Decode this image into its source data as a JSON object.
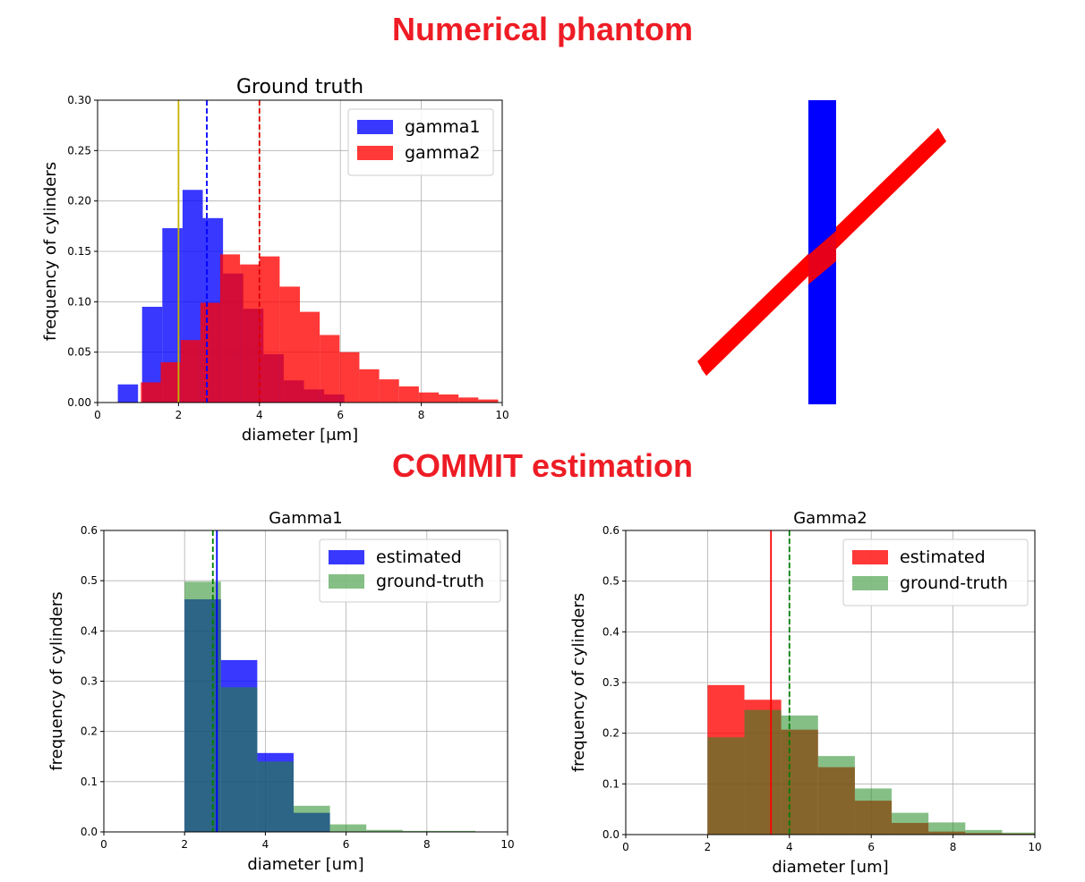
{
  "headings": {
    "top": "Numerical phantom",
    "middle": "COMMIT estimation"
  },
  "phantom": {
    "bundle1_color": "#0000ff",
    "bundle2_color": "#ff0000"
  },
  "chart_data": [
    {
      "id": "ground-truth",
      "type": "bar",
      "title": "Ground truth",
      "xlabel": "diameter [μm]",
      "ylabel": "frequency of cylinders",
      "xlim": [
        0,
        10
      ],
      "ylim": [
        0,
        0.3
      ],
      "xticks": [
        0,
        2,
        4,
        6,
        8,
        10
      ],
      "xtick_labels": [
        "0",
        "2",
        "4",
        "6",
        "8",
        "10"
      ],
      "yticks": [
        0,
        0.05,
        0.1,
        0.15,
        0.2,
        0.25,
        0.3
      ],
      "ytick_labels": [
        "0.00",
        "0.05",
        "0.10",
        "0.15",
        "0.20",
        "0.25",
        "0.30"
      ],
      "grid": true,
      "legend_position": "top-right",
      "series": [
        {
          "name": "gamma1",
          "color": "#0000ff",
          "opacity": 0.78,
          "bin_edges": [
            0.5,
            1.0,
            1.1,
            1.6,
            2.1,
            2.6,
            3.1,
            3.6,
            4.1,
            4.6,
            5.1,
            5.6,
            6.1
          ],
          "values": [
            0.018,
            0.0,
            0.095,
            0.173,
            0.211,
            0.183,
            0.128,
            0.093,
            0.048,
            0.022,
            0.013,
            0.008
          ]
        },
        {
          "name": "gamma2",
          "color": "#ff0000",
          "opacity": 0.78,
          "bin_edges": [
            1.07,
            1.56,
            2.05,
            2.54,
            3.03,
            3.52,
            4.01,
            4.5,
            5.0,
            5.49,
            5.98,
            6.47,
            6.96,
            7.45,
            7.94,
            8.43,
            8.92,
            9.41,
            9.9
          ],
          "values": [
            0.02,
            0.04,
            0.062,
            0.099,
            0.147,
            0.137,
            0.145,
            0.115,
            0.09,
            0.067,
            0.05,
            0.033,
            0.023,
            0.016,
            0.01,
            0.008,
            0.005,
            0.003
          ]
        }
      ],
      "vlines": [
        {
          "x": 2.0,
          "color": "#c8b400",
          "style": "solid"
        },
        {
          "x": 2.7,
          "color": "#0000ff",
          "style": "dashed"
        },
        {
          "x": 4.0,
          "color": "#dd0000",
          "style": "dashed"
        }
      ]
    },
    {
      "id": "gamma1",
      "type": "bar",
      "title": "Gamma1",
      "xlabel": "diameter [um]",
      "ylabel": "frequency of cylinders",
      "xlim": [
        0,
        10
      ],
      "ylim": [
        0,
        0.6
      ],
      "xticks": [
        0,
        2,
        4,
        6,
        8,
        10
      ],
      "xtick_labels": [
        "0",
        "2",
        "4",
        "6",
        "8",
        "10"
      ],
      "yticks": [
        0,
        0.1,
        0.2,
        0.3,
        0.4,
        0.5,
        0.6
      ],
      "ytick_labels": [
        "0.0",
        "0.1",
        "0.2",
        "0.3",
        "0.4",
        "0.5",
        "0.6"
      ],
      "grid": true,
      "legend_position": "top-right",
      "series": [
        {
          "name": "estimated",
          "color": "#0000ff",
          "opacity": 0.78,
          "bin_edges": [
            2.0,
            2.9,
            3.8,
            4.7,
            5.6,
            6.5,
            7.4,
            8.3,
            9.2
          ],
          "values": [
            0.463,
            0.342,
            0.157,
            0.038,
            0.0,
            0.0,
            0.0,
            0.0
          ]
        },
        {
          "name": "ground-truth",
          "color": "#228b22",
          "opacity": 0.55,
          "bin_edges": [
            2.0,
            2.9,
            3.8,
            4.7,
            5.6,
            6.5,
            7.4,
            8.3,
            9.2
          ],
          "values": [
            0.498,
            0.288,
            0.14,
            0.052,
            0.015,
            0.004,
            0.002,
            0.002
          ]
        }
      ],
      "vlines": [
        {
          "x": 2.7,
          "color": "#008000",
          "style": "dashed"
        },
        {
          "x": 2.8,
          "color": "#0000ff",
          "style": "solid"
        }
      ]
    },
    {
      "id": "gamma2",
      "type": "bar",
      "title": "Gamma2",
      "xlabel": "diameter [um]",
      "ylabel": "frequency of cylinders",
      "xlim": [
        0,
        10
      ],
      "ylim": [
        0,
        0.6
      ],
      "xticks": [
        0,
        2,
        4,
        6,
        8,
        10
      ],
      "xtick_labels": [
        "0",
        "2",
        "4",
        "6",
        "8",
        "10"
      ],
      "yticks": [
        0,
        0.1,
        0.2,
        0.3,
        0.4,
        0.5,
        0.6
      ],
      "ytick_labels": [
        "0.0",
        "0.1",
        "0.2",
        "0.3",
        "0.4",
        "0.5",
        "0.6"
      ],
      "grid": true,
      "legend_position": "top-right",
      "series": [
        {
          "name": "estimated",
          "color": "#ff0000",
          "opacity": 0.78,
          "bin_edges": [
            2.0,
            2.9,
            3.8,
            4.7,
            5.6,
            6.5,
            7.4,
            8.3,
            9.2,
            10.0
          ],
          "values": [
            0.295,
            0.266,
            0.207,
            0.133,
            0.067,
            0.023,
            0.006,
            0.003,
            0.002
          ]
        },
        {
          "name": "ground-truth",
          "color": "#228b22",
          "opacity": 0.55,
          "bin_edges": [
            2.0,
            2.9,
            3.8,
            4.7,
            5.6,
            6.5,
            7.4,
            8.3,
            9.2,
            10.0
          ],
          "values": [
            0.192,
            0.246,
            0.235,
            0.155,
            0.091,
            0.043,
            0.024,
            0.009,
            0.004
          ]
        }
      ],
      "vlines": [
        {
          "x": 3.55,
          "color": "#ff0000",
          "style": "solid"
        },
        {
          "x": 4.0,
          "color": "#008000",
          "style": "dashed"
        }
      ]
    }
  ]
}
